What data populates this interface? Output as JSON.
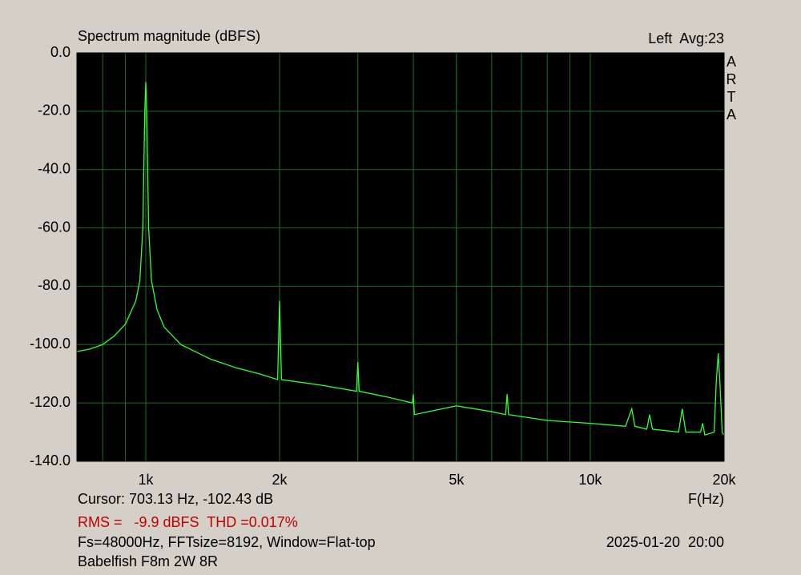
{
  "chart_data": {
    "type": "line",
    "title": "Spectrum magnitude (dBFS)",
    "channel_label": "Left  Avg:23",
    "brand": "ARTA",
    "x_label": "F(Hz)",
    "cursor": "Cursor: 703.13 Hz, -102.43 dB",
    "rms_thd": "RMS =   -9.9 dBFS  THD =0.017%",
    "settings": "Fs=48000Hz, FFTsize=8192, Window=Flat-top",
    "timestamp": "2025-01-20  20:00",
    "device": "Babelfish F8m 2W 8R",
    "x_scale": "log",
    "grid": true,
    "background": "#000000",
    "grid_color": "#1e6e1e",
    "xlim": [
      700,
      20000
    ],
    "ylim": [
      -140,
      0
    ],
    "xticks": [
      {
        "value": 1000,
        "label": "1k"
      },
      {
        "value": 2000,
        "label": "2k"
      },
      {
        "value": 5000,
        "label": "5k"
      },
      {
        "value": 10000,
        "label": "10k"
      },
      {
        "value": 20000,
        "label": "20k"
      }
    ],
    "yticks": [
      {
        "value": 0,
        "label": "0.0"
      },
      {
        "value": -20,
        "label": "-20.0"
      },
      {
        "value": -40,
        "label": "-40.0"
      },
      {
        "value": -60,
        "label": "-60.0"
      },
      {
        "value": -80,
        "label": "-80.0"
      },
      {
        "value": -100,
        "label": "-100.0"
      },
      {
        "value": -120,
        "label": "-120.0"
      },
      {
        "value": -140,
        "label": "-140.0"
      }
    ],
    "x": [
      700,
      750,
      800,
      850,
      900,
      950,
      970,
      985,
      995,
      1000,
      1005,
      1015,
      1030,
      1060,
      1100,
      1200,
      1400,
      1600,
      1800,
      1980,
      2000,
      2020,
      2500,
      2980,
      3000,
      3020,
      3500,
      3980,
      4000,
      4020,
      5000,
      6000,
      6450,
      6500,
      6550,
      8000,
      10000,
      12000,
      12400,
      12600,
      13400,
      13600,
      13800,
      15800,
      16100,
      16400,
      17700,
      17900,
      18100,
      19000,
      19200,
      19400,
      19600,
      19800,
      20000
    ],
    "series": [
      {
        "name": "Left",
        "color": "#33ff33",
        "values": [
          -102.4,
          -101.5,
          -100,
          -97,
          -93,
          -85,
          -78,
          -60,
          -20,
          -10,
          -20,
          -60,
          -78,
          -88,
          -94,
          -100,
          -105,
          -108,
          -110,
          -112,
          -85,
          -112,
          -114,
          -116,
          -106,
          -116,
          -118,
          -120,
          -117,
          -124,
          -121,
          -123,
          -124,
          -117,
          -124,
          -126,
          -127,
          -128,
          -122,
          -128,
          -129,
          -124,
          -129,
          -130,
          -122,
          -130,
          -130,
          -127,
          -131,
          -130,
          -113,
          -103,
          -115,
          -130,
          -131
        ]
      }
    ]
  }
}
